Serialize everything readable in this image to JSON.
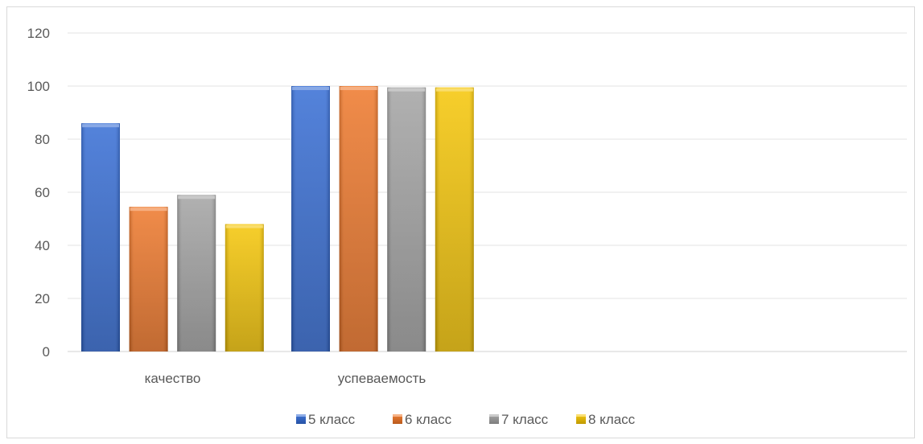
{
  "chart_data": {
    "type": "bar",
    "categories": [
      "качество",
      "успеваемость"
    ],
    "series": [
      {
        "name": "5 класс",
        "values": [
          86,
          100
        ],
        "color": "#3169d4"
      },
      {
        "name": "6 класс",
        "values": [
          54.5,
          100
        ],
        "color": "#ee7424"
      },
      {
        "name": "7 класс",
        "values": [
          59,
          99.5
        ],
        "color": "#a0a0a0"
      },
      {
        "name": "8 класс",
        "values": [
          48,
          99.5
        ],
        "color": "#f5c400"
      }
    ],
    "y_ticks": [
      "0",
      "20",
      "40",
      "60",
      "80",
      "100",
      "120"
    ],
    "ylim": [
      0,
      120
    ],
    "grid": true,
    "legend_position": "bottom"
  }
}
